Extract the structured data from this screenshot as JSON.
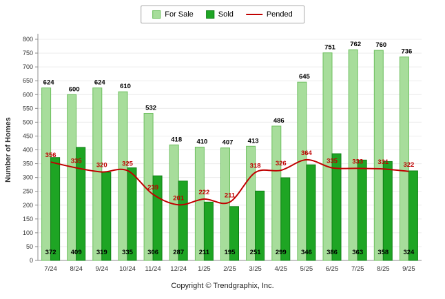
{
  "legend": {
    "position": "top-center"
  },
  "chart_data": {
    "type": "bar+line",
    "categories": [
      "7/24",
      "8/24",
      "9/24",
      "10/24",
      "11/24",
      "12/24",
      "1/25",
      "2/25",
      "3/25",
      "4/25",
      "5/25",
      "6/25",
      "7/25",
      "8/25",
      "9/25"
    ],
    "series": [
      {
        "name": "For Sale",
        "type": "bar",
        "color": "#A7DD9B",
        "border": "#6CBF5E",
        "values": [
          624,
          600,
          624,
          610,
          532,
          418,
          410,
          407,
          413,
          486,
          645,
          751,
          762,
          760,
          736
        ],
        "label_color": "#000000"
      },
      {
        "name": "Sold",
        "type": "bar",
        "color": "#1EA524",
        "border": "#0E7F14",
        "values": [
          372,
          409,
          319,
          335,
          306,
          287,
          211,
          195,
          251,
          299,
          346,
          386,
          363,
          358,
          324
        ],
        "label_color": "#000000"
      },
      {
        "name": "Pended",
        "type": "line",
        "color": "#C00000",
        "values": [
          356,
          335,
          320,
          325,
          239,
          201,
          222,
          211,
          318,
          326,
          364,
          335,
          333,
          331,
          322
        ],
        "label_color": "#C00000"
      }
    ],
    "title": "",
    "xlabel": "",
    "ylabel": "Number of Homes",
    "ylim": [
      0,
      800
    ],
    "ytick_step": 50,
    "grid": true,
    "legend_position": "top-center"
  },
  "footer": {
    "copyright": "Copyright © Trendgraphix, Inc."
  }
}
